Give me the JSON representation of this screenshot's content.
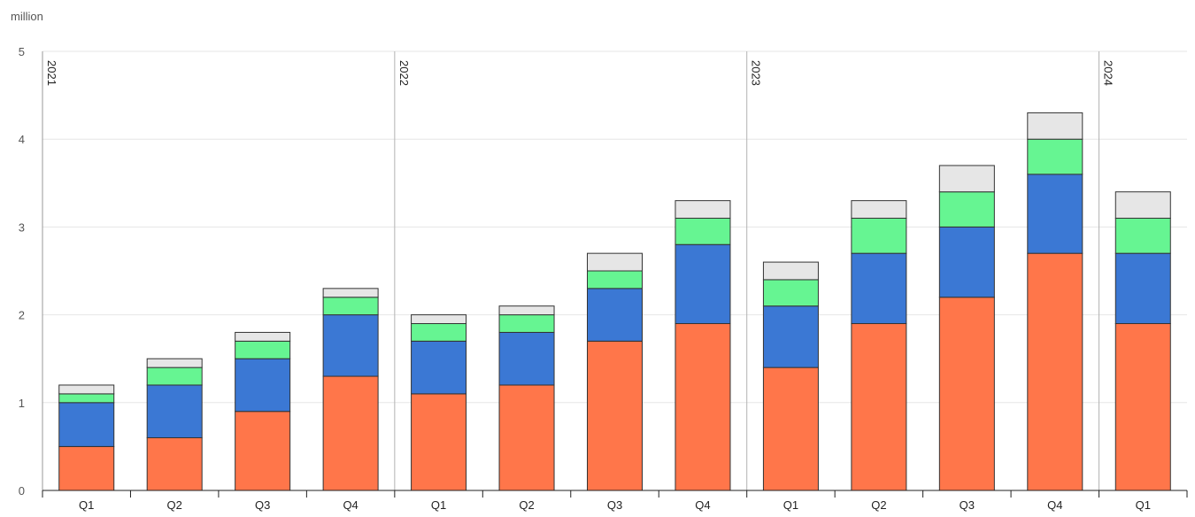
{
  "chart_data": {
    "type": "bar",
    "stacked": true,
    "title": "",
    "unit_label": "million",
    "xlabel": "",
    "ylabel": "",
    "ylim": [
      0,
      5
    ],
    "yticks": [
      0,
      1,
      2,
      3,
      4,
      5
    ],
    "grid": true,
    "legend": "none",
    "years": [
      {
        "label": "2021",
        "start_index": 0
      },
      {
        "label": "2022",
        "start_index": 4
      },
      {
        "label": "2023",
        "start_index": 8
      },
      {
        "label": "2024",
        "start_index": 12
      }
    ],
    "categories": [
      "Q1",
      "Q2",
      "Q3",
      "Q4",
      "Q1",
      "Q2",
      "Q3",
      "Q4",
      "Q1",
      "Q2",
      "Q3",
      "Q4",
      "Q1"
    ],
    "series": [
      {
        "color": "#ff764a",
        "values": [
          0.5,
          0.6,
          0.9,
          1.3,
          1.1,
          1.2,
          1.7,
          1.9,
          1.4,
          1.9,
          2.2,
          2.7,
          1.9
        ]
      },
      {
        "color": "#3b78d4",
        "values": [
          0.5,
          0.6,
          0.6,
          0.7,
          0.6,
          0.6,
          0.6,
          0.9,
          0.7,
          0.8,
          0.8,
          0.9,
          0.8
        ]
      },
      {
        "color": "#66f592",
        "values": [
          0.1,
          0.2,
          0.2,
          0.2,
          0.2,
          0.2,
          0.2,
          0.3,
          0.3,
          0.4,
          0.4,
          0.4,
          0.4
        ]
      },
      {
        "color": "#e6e6e6",
        "values": [
          0.1,
          0.1,
          0.1,
          0.1,
          0.1,
          0.1,
          0.2,
          0.2,
          0.2,
          0.2,
          0.3,
          0.3,
          0.3
        ]
      }
    ]
  }
}
